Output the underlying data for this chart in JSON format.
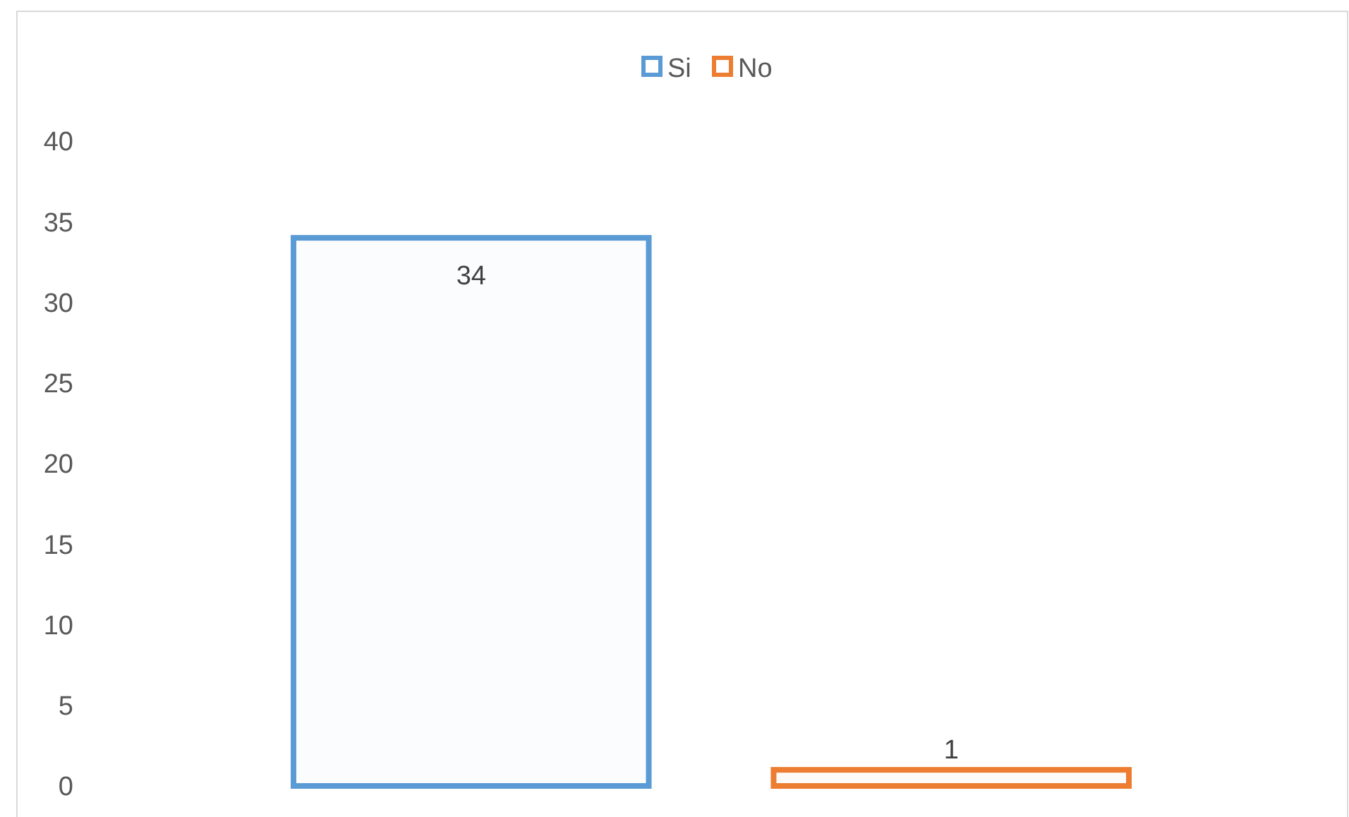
{
  "chart_data": {
    "type": "bar",
    "categories": [
      null
    ],
    "series": [
      {
        "name": "Si",
        "color": "#5b9bd5",
        "values": [
          34
        ]
      },
      {
        "name": "No",
        "color": "#ed7d31",
        "values": [
          1
        ]
      }
    ],
    "ylim": [
      0,
      40
    ],
    "yticks": [
      0,
      5,
      10,
      15,
      20,
      25,
      30,
      35,
      40
    ],
    "grid": false,
    "legend": "top",
    "data_labels": true
  }
}
